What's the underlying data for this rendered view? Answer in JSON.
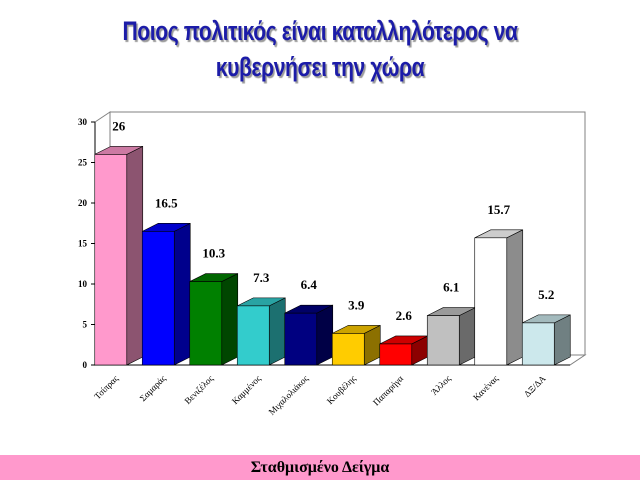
{
  "chart_data": {
    "type": "bar3d",
    "title": [
      "Ποιος πολιτικός είναι καταλληλότερος  να",
      "κυβερνήσει την χώρα"
    ],
    "categories": [
      "Τσίπρας",
      "Σαμαράς",
      "Βενιζέλος",
      "Καμμένος",
      "Μιχαλολιάκος",
      "Κουβέλης",
      "Παπαρήγα",
      "Άλλος",
      "Κανένας",
      "ΔΞ/ΔΑ"
    ],
    "values": [
      26,
      16.5,
      10.3,
      7.3,
      6.4,
      3.9,
      2.6,
      6.1,
      15.7,
      5.2
    ],
    "colors": [
      "#ff99cc",
      "#0000ff",
      "#008000",
      "#33cccc",
      "#000080",
      "#ffcc00",
      "#ff0000",
      "#c0c0c0",
      "#ffffff",
      "#cce8ec"
    ],
    "ylim": [
      0,
      30
    ],
    "yticks": [
      0,
      5,
      10,
      15,
      20,
      25,
      30
    ],
    "footer": "Σταθμισμένο Δείγμα"
  }
}
